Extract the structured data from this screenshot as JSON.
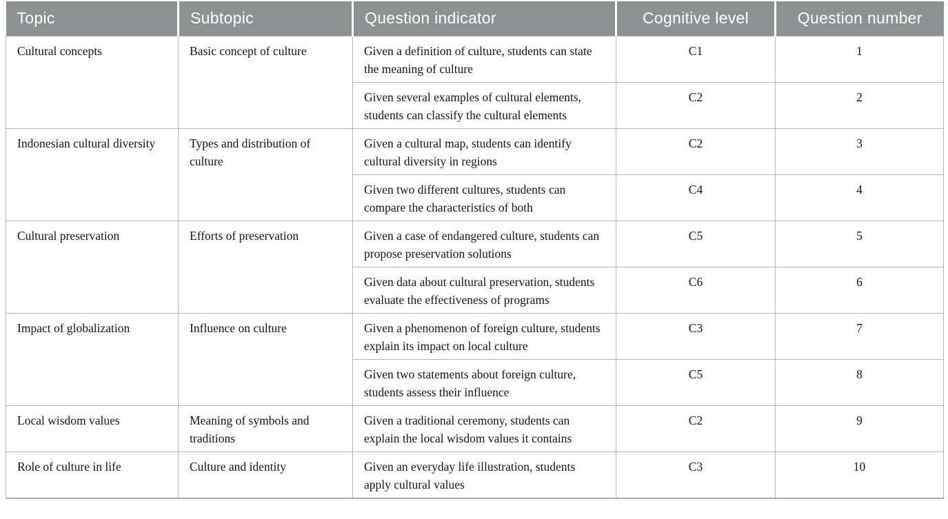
{
  "colors": {
    "header_bg": "#8e9192",
    "header_text": "#ffffff",
    "border": "#b4b7b7",
    "bottom_border": "#a9acac",
    "body_text": "#151515",
    "page_bg": "#ffffff"
  },
  "table": {
    "headers": [
      {
        "label": "Topic"
      },
      {
        "label": "Subtopic"
      },
      {
        "label": "Question indicator"
      },
      {
        "label": "Cognitive level"
      },
      {
        "label": "Question number"
      }
    ],
    "groups": [
      {
        "topic": "Cultural concepts",
        "subtopic": "Basic concept of culture",
        "rows": [
          {
            "indicator": "Given a definition of culture, students can state the meaning of culture",
            "level": "C1",
            "number": "1"
          },
          {
            "indicator": "Given several examples of cultural elements, students can classify the cultural elements",
            "level": "C2",
            "number": "2"
          }
        ]
      },
      {
        "topic": "Indonesian cultural diversity",
        "subtopic": "Types and distribution of culture",
        "rows": [
          {
            "indicator": "Given a cultural map, students can identify cultural diversity in regions",
            "level": "C2",
            "number": "3"
          },
          {
            "indicator": "Given two different cultures, students can compare the characteristics of both",
            "level": "C4",
            "number": "4"
          }
        ]
      },
      {
        "topic": "Cultural preservation",
        "subtopic": "Efforts of preservation",
        "rows": [
          {
            "indicator": "Given a case of endangered culture, students can propose preservation solutions",
            "level": "C5",
            "number": "5"
          },
          {
            "indicator": "Given data about cultural preservation, students evaluate the effectiveness of programs",
            "level": "C6",
            "number": "6"
          }
        ]
      },
      {
        "topic": "Impact of globalization",
        "subtopic": "Influence on culture",
        "rows": [
          {
            "indicator": "Given a phenomenon of foreign culture, students explain its impact on local culture",
            "level": "C3",
            "number": "7"
          },
          {
            "indicator": "Given two statements about foreign culture, students assess their influence",
            "level": "C5",
            "number": "8"
          }
        ]
      },
      {
        "topic": "Local wisdom values",
        "subtopic": "Meaning of symbols and traditions",
        "rows": [
          {
            "indicator": "Given a traditional ceremony, students can explain the local wisdom values it contains",
            "level": "C2",
            "number": "9"
          }
        ]
      },
      {
        "topic": "Role of culture in life",
        "subtopic": "Culture and identity",
        "rows": [
          {
            "indicator": "Given an everyday life illustration, students apply cultural values",
            "level": "C3",
            "number": "10"
          }
        ]
      }
    ]
  }
}
